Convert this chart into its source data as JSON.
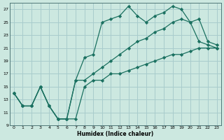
{
  "xlabel": "Humidex (Indice chaleur)",
  "background_color": "#cce8e0",
  "grid_color": "#a8cccc",
  "line_color": "#1a7060",
  "xlim": [
    -0.5,
    23.5
  ],
  "ylim": [
    9,
    28
  ],
  "yticks": [
    9,
    11,
    13,
    15,
    17,
    19,
    21,
    23,
    25,
    27
  ],
  "xticks": [
    0,
    1,
    2,
    3,
    4,
    5,
    6,
    7,
    8,
    9,
    10,
    11,
    12,
    13,
    14,
    15,
    16,
    17,
    18,
    19,
    20,
    21,
    22,
    23
  ],
  "line1_x": [
    0,
    1,
    2,
    3,
    4,
    5,
    6,
    7,
    8,
    9,
    10,
    11,
    12,
    13,
    14,
    15,
    16,
    17,
    18,
    19,
    20,
    21,
    22,
    23
  ],
  "line1_y": [
    14,
    12,
    12,
    15,
    12,
    10,
    10,
    16,
    19.5,
    20,
    25,
    25.5,
    26,
    27.5,
    26,
    25,
    26,
    26.5,
    27.5,
    27,
    25,
    25.5,
    22,
    21.5
  ],
  "line2_x": [
    0,
    1,
    2,
    3,
    4,
    5,
    6,
    7,
    8,
    9,
    10,
    11,
    12,
    13,
    14,
    15,
    16,
    17,
    18,
    19,
    20,
    21,
    22,
    23
  ],
  "line2_y": [
    14,
    12,
    12,
    15,
    12,
    10,
    10,
    10,
    15,
    16,
    16,
    17,
    17,
    17.5,
    18,
    18.5,
    19,
    19.5,
    20,
    20,
    20.5,
    21,
    21,
    21
  ],
  "line3_x": [
    0,
    1,
    2,
    3,
    4,
    5,
    6,
    7,
    8,
    9,
    10,
    11,
    12,
    13,
    14,
    15,
    16,
    17,
    18,
    19,
    20,
    21,
    22,
    23
  ],
  "line3_y": [
    14,
    12,
    12,
    15,
    12,
    10,
    10,
    16,
    16,
    17,
    18,
    19,
    20,
    21,
    22,
    22.5,
    23.5,
    24,
    25,
    25.5,
    25,
    22,
    21.5,
    21
  ]
}
